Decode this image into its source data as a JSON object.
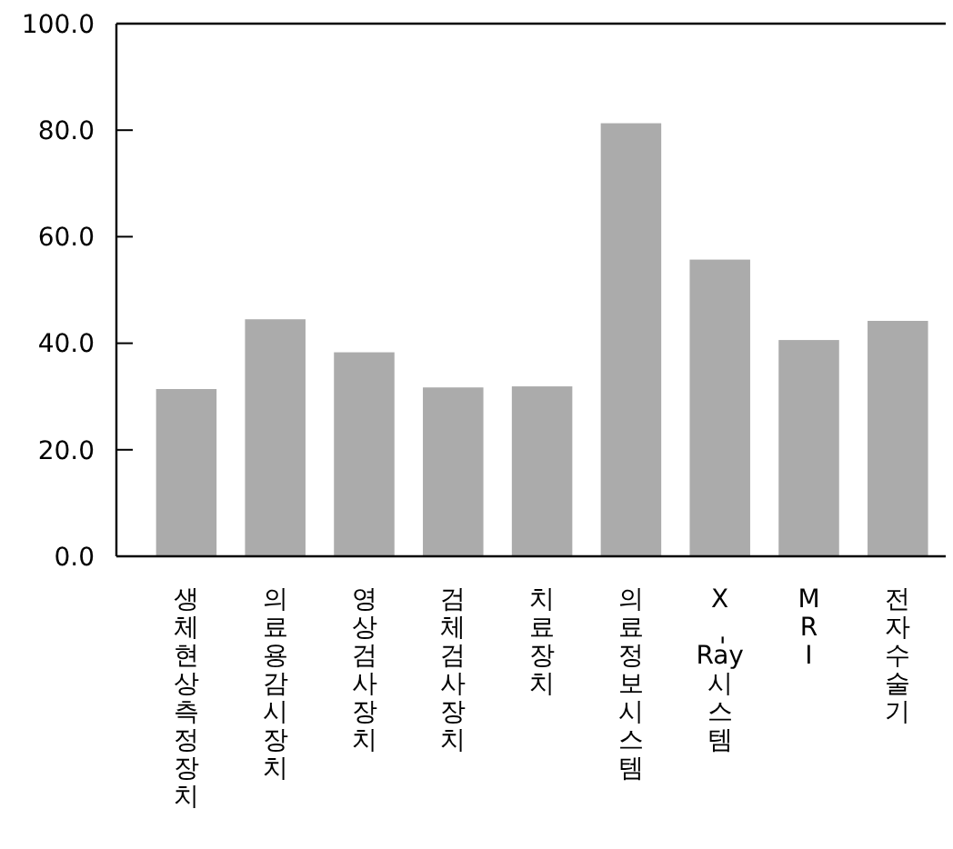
{
  "chart_data": {
    "type": "bar",
    "categories": [
      "생체현상측정장치",
      "의료용감시장치",
      "영상검사장치",
      "검체검사장치",
      "치료장치",
      "의료정보시스템",
      "X-Ray시스템",
      "MRI",
      "전자수술기"
    ],
    "values": [
      31.4,
      44.5,
      38.3,
      31.7,
      31.9,
      81.3,
      55.7,
      40.6,
      44.2
    ],
    "color": "#ababab",
    "ylim": [
      0,
      100
    ],
    "yticks": [
      {
        "value": 0,
        "label": "0.0"
      },
      {
        "value": 20,
        "label": "20.0"
      },
      {
        "value": 40,
        "label": "40.0"
      },
      {
        "value": 60,
        "label": "60.0"
      },
      {
        "value": 80,
        "label": "80.0"
      },
      {
        "value": 100,
        "label": "100.0"
      }
    ],
    "grid": false
  }
}
